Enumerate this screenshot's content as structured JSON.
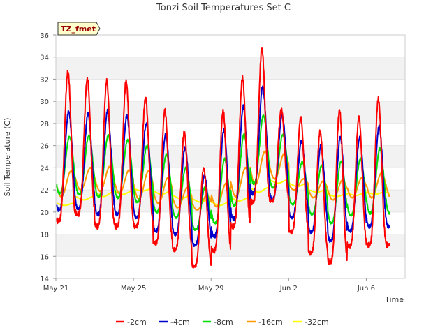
{
  "chart_data": {
    "type": "line",
    "title": "Tonzi Soil Temperatures Set C",
    "xlabel": "Time",
    "ylabel": "Soil Temperature (C)",
    "badge": "TZ_fmet",
    "ylim": [
      14,
      36
    ],
    "yticks": [
      14,
      16,
      18,
      20,
      22,
      24,
      26,
      28,
      30,
      32,
      34,
      36
    ],
    "xlim": [
      "2021-05-21",
      "2021-06-08"
    ],
    "xticks": [
      {
        "date": "2021-05-21",
        "label": "May 21"
      },
      {
        "date": "2021-05-25",
        "label": "May 25"
      },
      {
        "date": "2021-05-29",
        "label": "May 29"
      },
      {
        "date": "2021-06-02",
        "label": "Jun 2"
      },
      {
        "date": "2021-06-06",
        "label": "Jun 6"
      }
    ],
    "grid": true,
    "legend_position": "bottom",
    "series": [
      {
        "name": "-2cm",
        "color": "#ff0000",
        "min": [
          19.2,
          19.8,
          18.7,
          18.7,
          18.7,
          17.2,
          16.6,
          15.1,
          16.5,
          18.7,
          20.9,
          21.0,
          18.2,
          16.3,
          15.5,
          16.9,
          17.0
        ],
        "max": [
          32.7,
          32.0,
          31.8,
          31.8,
          30.3,
          29.2,
          27.2,
          24.0,
          29.1,
          32.1,
          34.7,
          29.3,
          28.5,
          27.3,
          29.2,
          28.5,
          30.2
        ]
      },
      {
        "name": "-4cm",
        "color": "#0000cc",
        "min": [
          20.2,
          20.3,
          19.8,
          19.8,
          19.5,
          18.3,
          18.0,
          17.0,
          17.8,
          19.4,
          21.7,
          21.2,
          19.5,
          18.2,
          17.4,
          18.3,
          18.7
        ],
        "max": [
          29.1,
          28.9,
          29.1,
          28.7,
          28.0,
          27.0,
          25.8,
          23.3,
          27.4,
          29.5,
          31.3,
          28.8,
          26.4,
          26.0,
          26.8,
          26.7,
          27.7
        ]
      },
      {
        "name": "-8cm",
        "color": "#00dd00",
        "min": [
          21.7,
          21.6,
          21.4,
          21.3,
          20.9,
          20.0,
          19.5,
          18.4,
          19.0,
          20.6,
          22.6,
          22.2,
          20.7,
          19.8,
          19.0,
          19.7,
          19.9
        ],
        "max": [
          26.8,
          26.9,
          26.9,
          26.5,
          26.0,
          25.2,
          24.0,
          22.3,
          24.8,
          27.0,
          28.7,
          27.0,
          24.5,
          24.2,
          24.6,
          24.8,
          25.7
        ]
      },
      {
        "name": "-16cm",
        "color": "#ff9900",
        "min": [
          21.4,
          22.0,
          21.9,
          21.7,
          21.2,
          20.8,
          20.4,
          20.2,
          20.5,
          21.4,
          22.5,
          23.0,
          22.0,
          21.3,
          21.1,
          21.3,
          21.3
        ],
        "max": [
          23.7,
          24.0,
          24.1,
          23.8,
          23.7,
          23.1,
          22.2,
          21.5,
          22.6,
          24.0,
          25.5,
          25.3,
          23.0,
          22.8,
          22.9,
          23.1,
          23.5
        ]
      },
      {
        "name": "-32cm",
        "color": "#ffff00",
        "min": [
          20.6,
          21.1,
          21.4,
          21.6,
          21.9,
          21.6,
          21.2,
          20.9,
          20.6,
          21.0,
          21.8,
          22.6,
          22.3,
          21.8,
          21.4,
          21.5,
          21.6
        ],
        "max": [
          20.8,
          21.4,
          21.8,
          21.9,
          22.1,
          21.9,
          21.5,
          21.2,
          20.9,
          21.3,
          22.2,
          22.9,
          22.6,
          22.0,
          21.6,
          21.7,
          21.8
        ]
      }
    ]
  }
}
